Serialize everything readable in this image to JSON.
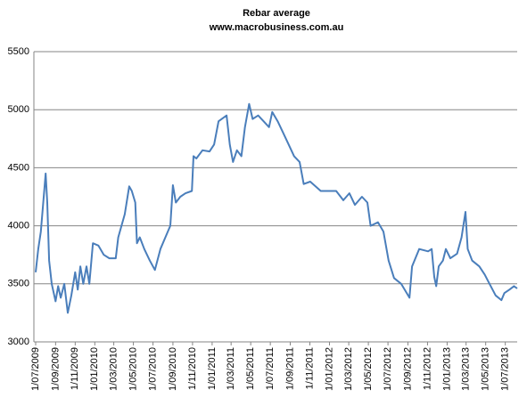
{
  "chart_data": {
    "type": "line",
    "title": "Rebar average",
    "subtitle": "www.macrobusiness.com.au",
    "x": [
      "1/07/2009",
      "9/07/2009",
      "17/07/2009",
      "1/08/2009",
      "6/08/2009",
      "12/08/2009",
      "20/08/2009",
      "1/09/2009",
      "9/09/2009",
      "17/09/2009",
      "28/09/2009",
      "9/10/2009",
      "20/10/2009",
      "1/11/2009",
      "9/11/2009",
      "17/11/2009",
      "26/11/2009",
      "6/12/2009",
      "15/12/2009",
      "26/12/2009",
      "12/01/2010",
      "29/01/2010",
      "15/02/2010",
      "7/03/2010",
      "15/03/2010",
      "4/04/2010",
      "18/04/2010",
      "26/04/2010",
      "7/05/2010",
      "12/05/2010",
      "21/05/2010",
      "4/06/2010",
      "21/06/2010",
      "7/07/2010",
      "24/07/2010",
      "16/08/2010",
      "24/08/2010",
      "1/09/2010",
      "10/09/2010",
      "24/09/2010",
      "10/10/2010",
      "30/10/2010",
      "4/11/2010",
      "13/11/2010",
      "2/12/2010",
      "24/12/2010",
      "7/01/2011",
      "21/01/2011",
      "15/02/2011",
      "25/02/2011",
      "7/03/2011",
      "19/03/2011",
      "2/04/2011",
      "13/04/2011",
      "26/04/2011",
      "7/05/2011",
      "24/05/2011",
      "10/06/2011",
      "27/06/2011",
      "7/07/2011",
      "24/07/2011",
      "10/08/2011",
      "27/08/2011",
      "13/09/2011",
      "30/09/2011",
      "13/10/2011",
      "2/11/2011",
      "5/12/2011",
      "22/01/2012",
      "13/02/2012",
      "3/03/2012",
      "20/03/2012",
      "11/04/2012",
      "28/04/2012",
      "8/05/2012",
      "31/05/2012",
      "17/06/2012",
      "3/07/2012",
      "20/07/2012",
      "11/08/2012",
      "6/09/2012",
      "14/09/2012",
      "6/10/2012",
      "3/11/2012",
      "14/11/2012",
      "22/11/2012",
      "28/11/2012",
      "6/12/2012",
      "19/12/2012",
      "28/12/2012",
      "11/01/2013",
      "1/02/2013",
      "15/02/2013",
      "27/02/2013",
      "6/03/2013",
      "20/03/2013",
      "11/04/2013",
      "28/04/2013",
      "9/05/2013",
      "1/06/2013",
      "19/06/2013",
      "28/06/2013",
      "14/07/2013",
      "28/07/2013",
      "7/08/2013"
    ],
    "series": [
      {
        "name": "Rebar average",
        "color": "#4a7ebb",
        "values": [
          3600,
          3800,
          3950,
          4450,
          4200,
          3700,
          3500,
          3350,
          3480,
          3380,
          3500,
          3250,
          3400,
          3600,
          3450,
          3650,
          3500,
          3650,
          3500,
          3850,
          3830,
          3750,
          3720,
          3720,
          3900,
          4100,
          4340,
          4300,
          4200,
          3850,
          3900,
          3800,
          3700,
          3620,
          3800,
          3950,
          4000,
          4350,
          4200,
          4250,
          4280,
          4300,
          4600,
          4580,
          4650,
          4640,
          4700,
          4900,
          4950,
          4700,
          4550,
          4650,
          4600,
          4850,
          5050,
          4920,
          4950,
          4900,
          4850,
          4980,
          4900,
          4800,
          4700,
          4600,
          4550,
          4360,
          4380,
          4300,
          4300,
          4220,
          4280,
          4180,
          4250,
          4200,
          4000,
          4030,
          3950,
          3700,
          3550,
          3500,
          3380,
          3650,
          3800,
          3780,
          3800,
          3560,
          3480,
          3650,
          3700,
          3800,
          3720,
          3760,
          3900,
          4120,
          3800,
          3700,
          3650,
          3580,
          3520,
          3400,
          3360,
          3420,
          3450,
          3480,
          3460
        ]
      }
    ],
    "xlim": [
      "1/07/2009",
      "7/08/2013"
    ],
    "xticks": [
      "1/07/2009",
      "1/09/2009",
      "1/11/2009",
      "1/01/2010",
      "1/03/2010",
      "1/05/2010",
      "1/07/2010",
      "1/09/2010",
      "1/11/2010",
      "1/01/2011",
      "1/03/2011",
      "1/05/2011",
      "1/07/2011",
      "1/09/2011",
      "1/11/2011",
      "1/01/2012",
      "1/03/2012",
      "1/05/2012",
      "1/07/2012",
      "1/09/2012",
      "1/11/2012",
      "1/01/2013",
      "1/03/2013",
      "1/05/2013",
      "1/07/2013"
    ],
    "ylim": [
      3000,
      5500
    ],
    "yticks": [
      3000,
      3500,
      4000,
      4500,
      5000,
      5500
    ],
    "grid": true
  }
}
